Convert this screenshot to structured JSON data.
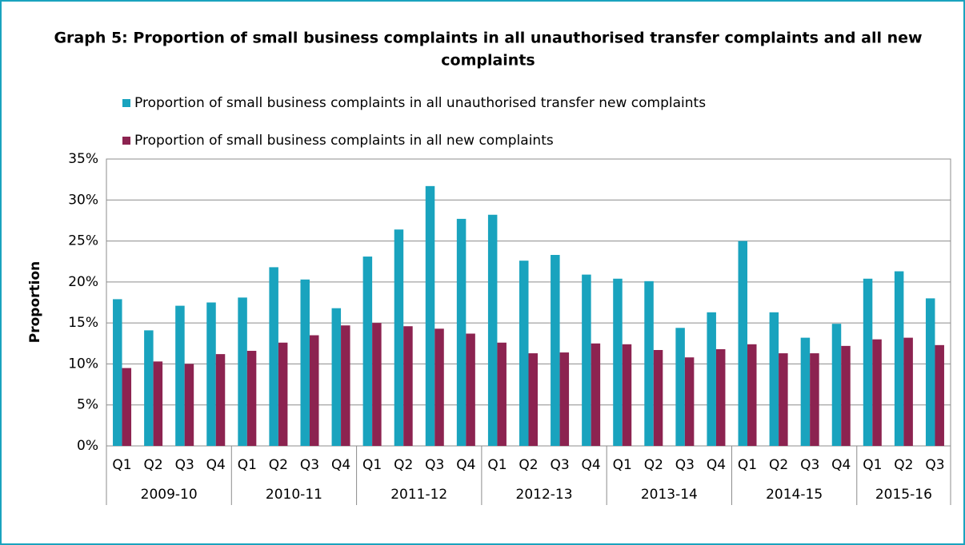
{
  "chart_data": {
    "type": "bar",
    "title": "Graph 5: Proportion of small business complaints in all unauthorised transfer complaints and all new complaints",
    "y_label": "Proportion",
    "categories": [
      {
        "quarter": "Q1",
        "year": "2009-10"
      },
      {
        "quarter": "Q2",
        "year": "2009-10"
      },
      {
        "quarter": "Q3",
        "year": "2009-10"
      },
      {
        "quarter": "Q4",
        "year": "2009-10"
      },
      {
        "quarter": "Q1",
        "year": "2010-11"
      },
      {
        "quarter": "Q2",
        "year": "2010-11"
      },
      {
        "quarter": "Q3",
        "year": "2010-11"
      },
      {
        "quarter": "Q4",
        "year": "2010-11"
      },
      {
        "quarter": "Q1",
        "year": "2011-12"
      },
      {
        "quarter": "Q2",
        "year": "2011-12"
      },
      {
        "quarter": "Q3",
        "year": "2011-12"
      },
      {
        "quarter": "Q4",
        "year": "2011-12"
      },
      {
        "quarter": "Q1",
        "year": "2012-13"
      },
      {
        "quarter": "Q2",
        "year": "2012-13"
      },
      {
        "quarter": "Q3",
        "year": "2012-13"
      },
      {
        "quarter": "Q4",
        "year": "2012-13"
      },
      {
        "quarter": "Q1",
        "year": "2013-14"
      },
      {
        "quarter": "Q2",
        "year": "2013-14"
      },
      {
        "quarter": "Q3",
        "year": "2013-14"
      },
      {
        "quarter": "Q4",
        "year": "2013-14"
      },
      {
        "quarter": "Q1",
        "year": "2014-15"
      },
      {
        "quarter": "Q2",
        "year": "2014-15"
      },
      {
        "quarter": "Q3",
        "year": "2014-15"
      },
      {
        "quarter": "Q4",
        "year": "2014-15"
      },
      {
        "quarter": "Q1",
        "year": "2015-16"
      },
      {
        "quarter": "Q2",
        "year": "2015-16"
      },
      {
        "quarter": "Q3",
        "year": "2015-16"
      }
    ],
    "series": [
      {
        "name": "Proportion of small business complaints in all unauthorised transfer new complaints",
        "color": "#19a3be",
        "values": [
          17.9,
          14.1,
          17.1,
          17.5,
          18.1,
          21.8,
          20.3,
          16.8,
          23.1,
          26.4,
          31.7,
          27.7,
          28.2,
          22.6,
          23.3,
          20.9,
          20.4,
          20.1,
          14.4,
          16.3,
          25.0,
          16.3,
          13.2,
          14.9,
          20.4,
          21.3,
          18.0
        ]
      },
      {
        "name": "Proportion of small business complaints in all new complaints",
        "color": "#8c2350",
        "values": [
          9.5,
          10.3,
          10.0,
          11.2,
          11.6,
          12.6,
          13.5,
          14.7,
          15.0,
          14.6,
          14.3,
          13.7,
          12.6,
          11.3,
          11.4,
          12.5,
          12.4,
          11.7,
          10.8,
          11.8,
          12.4,
          11.3,
          11.3,
          12.2,
          13.0,
          13.2,
          12.3
        ]
      }
    ],
    "ylim": [
      0,
      35
    ],
    "yticks": [
      {
        "value": 0,
        "label": "0%"
      },
      {
        "value": 5,
        "label": "5%"
      },
      {
        "value": 10,
        "label": "10%"
      },
      {
        "value": 15,
        "label": "15%"
      },
      {
        "value": 20,
        "label": "20%"
      },
      {
        "value": 25,
        "label": "25%"
      },
      {
        "value": 30,
        "label": "30%"
      },
      {
        "value": 35,
        "label": "35%"
      }
    ],
    "grid": true
  }
}
